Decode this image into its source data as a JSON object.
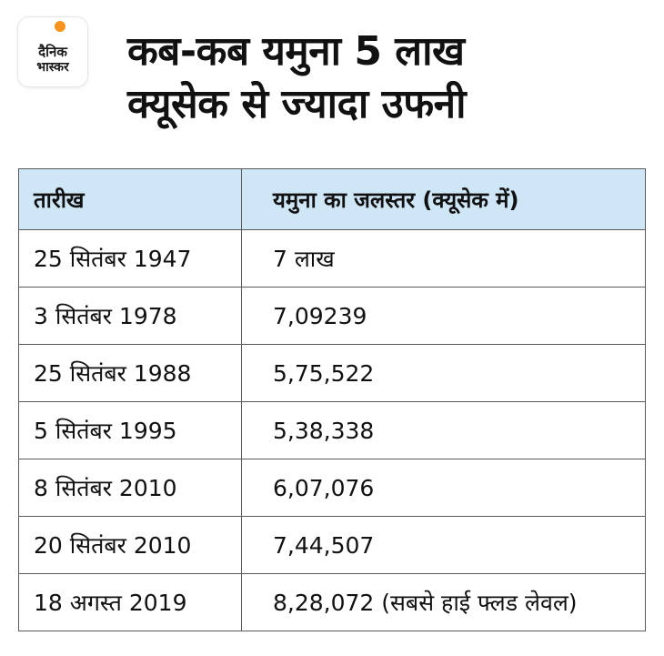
{
  "logo": {
    "line1": "दैनिक",
    "line2": "भास्कर",
    "accent_color": "#f7941d"
  },
  "title": {
    "line1": "कब-कब यमुना 5 लाख",
    "line2": "क्यूसेक से ज्यादा उफनी"
  },
  "table": {
    "header_bg": "#cfe6f7",
    "columns": [
      "तारीख",
      "यमुना का जलस्तर (क्यूसेक में)"
    ],
    "rows": [
      [
        "25 सितंबर 1947",
        "7 लाख"
      ],
      [
        "3 सितंबर 1978",
        "7,09239"
      ],
      [
        "25 सितंबर 1988",
        "5,75,522"
      ],
      [
        "5 सितंबर 1995",
        "5,38,338"
      ],
      [
        "8 सितंबर 2010",
        "6,07,076"
      ],
      [
        "20 सितंबर 2010",
        "7,44,507"
      ],
      [
        "18 अगस्त 2019",
        "8,28,072 (सबसे हाई फ्लड लेवल)"
      ]
    ]
  }
}
